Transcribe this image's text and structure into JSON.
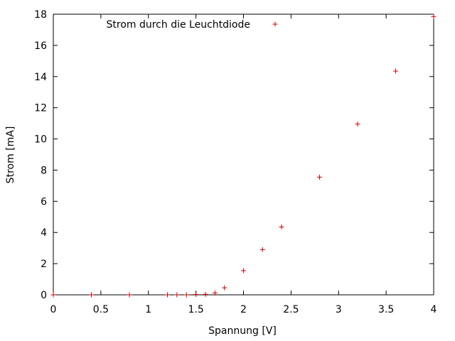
{
  "chart_data": {
    "type": "scatter",
    "xlabel": "Spannung [V]",
    "ylabel": "Strom [mA]",
    "xlim": [
      0,
      4
    ],
    "ylim": [
      0,
      18
    ],
    "x_ticks": [
      0,
      0.5,
      1,
      1.5,
      2,
      2.5,
      3,
      3.5,
      4
    ],
    "x_tick_labels": [
      "0",
      "0.5",
      "1",
      "1.5",
      "2",
      "2.5",
      "3",
      "3.5",
      "4"
    ],
    "y_ticks": [
      0,
      2,
      4,
      6,
      8,
      10,
      12,
      14,
      16,
      18
    ],
    "y_tick_labels": [
      "0",
      "2",
      "4",
      "6",
      "8",
      "10",
      "12",
      "14",
      "16",
      "18"
    ],
    "grid": false,
    "legend_position": "top-left",
    "marker": "plus",
    "series": [
      {
        "name": "Strom durch die Leuchtdiode",
        "color": "#cc0000",
        "points": [
          {
            "x": 0,
            "y": 0
          },
          {
            "x": 0.4,
            "y": 0
          },
          {
            "x": 0.8,
            "y": 0
          },
          {
            "x": 1.2,
            "y": 0
          },
          {
            "x": 1.3,
            "y": 0
          },
          {
            "x": 1.4,
            "y": 0
          },
          {
            "x": 1.5,
            "y": 0.02
          },
          {
            "x": 1.6,
            "y": 0.03
          },
          {
            "x": 1.7,
            "y": 0.12
          },
          {
            "x": 1.8,
            "y": 0.45
          },
          {
            "x": 2.0,
            "y": 1.55
          },
          {
            "x": 2.2,
            "y": 2.9
          },
          {
            "x": 2.4,
            "y": 4.35
          },
          {
            "x": 2.8,
            "y": 7.55
          },
          {
            "x": 3.2,
            "y": 10.95
          },
          {
            "x": 3.6,
            "y": 14.35
          },
          {
            "x": 4.0,
            "y": 17.85
          }
        ]
      }
    ]
  }
}
